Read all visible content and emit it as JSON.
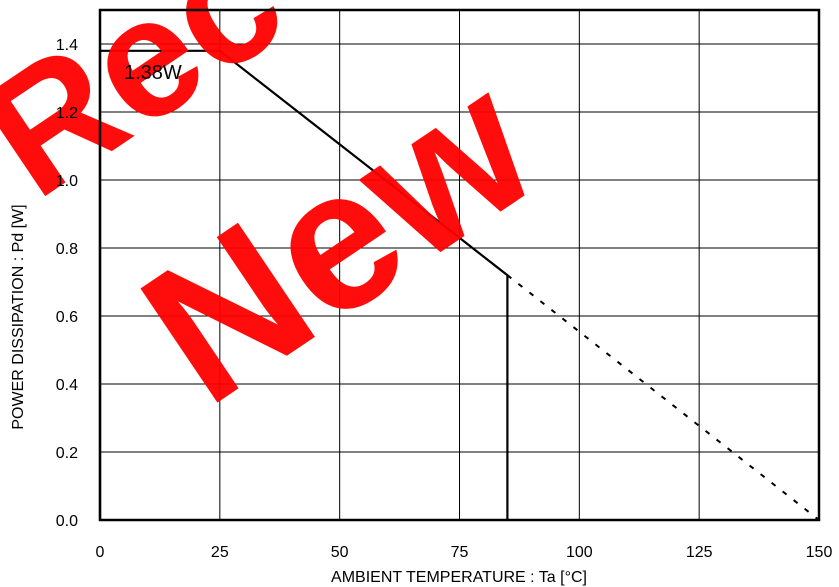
{
  "chart_data": {
    "type": "line",
    "title": "",
    "xlabel": "AMBIENT TEMPERATURE : Ta [°C]",
    "ylabel": "POWER DISSIPATION : Pd [W]",
    "xlim": [
      0,
      150
    ],
    "ylim": [
      0,
      1.5
    ],
    "x_ticks": [
      0,
      25,
      50,
      75,
      100,
      125,
      150
    ],
    "y_ticks": [
      0.0,
      0.2,
      0.4,
      0.6,
      0.8,
      1.0,
      1.2,
      1.4
    ],
    "x_tick_labels": [
      "0",
      "25",
      "50",
      "75",
      "100",
      "125",
      "150"
    ],
    "y_tick_labels": [
      "0.0",
      "0.2",
      "0.4",
      "0.6",
      "0.8",
      "1.0",
      "1.2",
      "1.4"
    ],
    "grid": true,
    "series": [
      {
        "style": "solid",
        "x": [
          0,
          0,
          25,
          85,
          85
        ],
        "y": [
          0,
          1.38,
          1.38,
          0.72,
          0
        ]
      },
      {
        "style": "dashed",
        "x": [
          85,
          150
        ],
        "y": [
          0.72,
          0
        ]
      }
    ],
    "annotations": [
      {
        "text": "1.38W",
        "x": 5,
        "y": 1.32
      }
    ]
  },
  "watermark": {
    "words": [
      "Rec",
      "New"
    ],
    "color": "#ff0000"
  }
}
